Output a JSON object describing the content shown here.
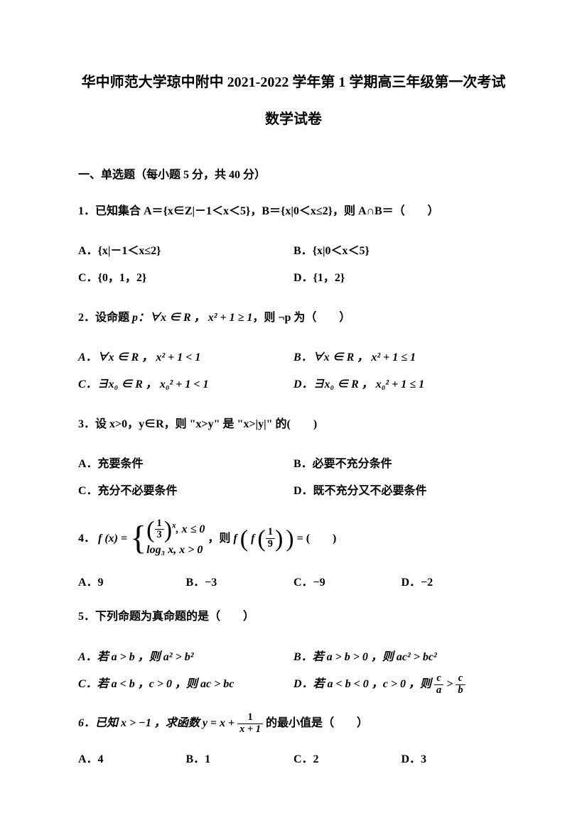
{
  "title": "华中师范大学琼中附中 2021-2022 学年第 1 学期高三年级第一次考试",
  "subtitle": "数学试卷",
  "section": "一、单选题（每小题 5 分，共 40 分）",
  "q1": {
    "stem": "1．已知集合 A＝{x∈Z|－1＜x＜5}，B＝{x|0＜x≤2}，则 A∩B＝（　　）",
    "A": "A．{x|－1＜x≤2}",
    "B": "B．{x|0＜x＜5}",
    "C": "C．{0，1，2}",
    "D": "D．{1，2}"
  },
  "q2": {
    "stem_pre": "2．设命题 ",
    "stem_mid": "p：∀x ∈ R ， x² + 1 ≥ 1",
    "stem_post": "，则 ¬p 为（　　）",
    "A": "A．∀x ∈ R ， x² + 1 < 1",
    "B": "B．∀x ∈ R ， x² + 1 ≤ 1",
    "C": "C．∃x₀ ∈ R ， x₀² + 1 < 1",
    "D": "D．∃x₀ ∈ R ， x₀² + 1 ≤ 1"
  },
  "q3": {
    "stem": "3．设 x>0，y∈R，则 \"x>y\" 是 \"x>|y|\" 的(　　)",
    "A": "A．充要条件",
    "B": "B．必要不充分条件",
    "C": "C．充分不必要条件",
    "D": "D．既不充分又不必要条件"
  },
  "q4": {
    "num_pre": "4．",
    "fx": "f (x) =",
    "piece1_base_num": "1",
    "piece1_base_den": "3",
    "piece1_exp": "x",
    "piece1_cond": ", x ≤ 0",
    "piece2": "log₃ x, x > 0",
    "mid": "，则 ",
    "ff": "f",
    "inner_f": "f",
    "inner_num": "1",
    "inner_den": "9",
    "eq": " = (　　)",
    "A": "A．9",
    "B": "B．−3",
    "C": "C．−9",
    "D": "D．−2"
  },
  "q5": {
    "stem": "5．下列命题为真命题的是（　　）",
    "A": "A．若 a > b ，则 a² > b²",
    "B": "B．若 a > b > 0 ，则 ac² > bc²",
    "C": "C．若 a < b ，c > 0 ，则 ac > bc",
    "D_pre": "D．若 a < b < 0 ，c > 0 ，则 ",
    "D_num1": "c",
    "D_den1": "a",
    "D_gt": " > ",
    "D_num2": "c",
    "D_den2": "b"
  },
  "q6": {
    "stem_pre": "6．已知 x > −1 ，求函数 y = x + ",
    "frac_num": "1",
    "frac_den": "x + 1",
    "stem_post": " 的最小值是（　　）",
    "A": "A．4",
    "B": "B．1",
    "C": "C．2",
    "D": "D．3"
  }
}
